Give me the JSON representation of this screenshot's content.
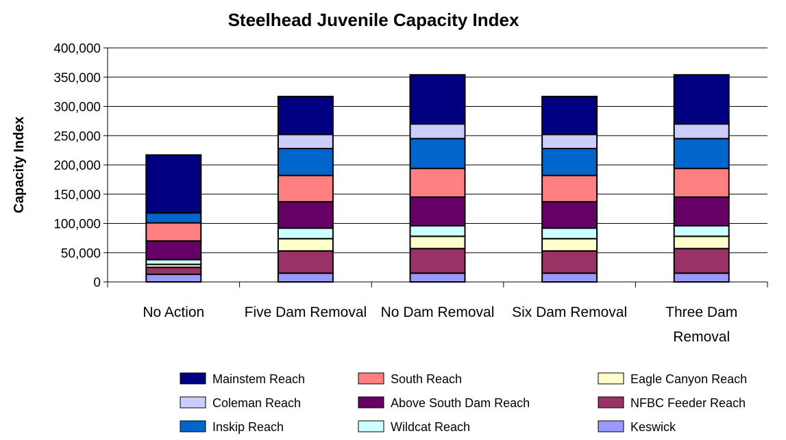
{
  "chart_data": {
    "type": "bar",
    "stacked": true,
    "title": "Steelhead Juvenile Capacity Index",
    "ylabel": "Capacity Index",
    "xlabel": "",
    "ylim": [
      0,
      400000
    ],
    "yticks": [
      0,
      50000,
      100000,
      150000,
      200000,
      250000,
      300000,
      350000,
      400000
    ],
    "ytick_labels": [
      "0",
      "50,000",
      "100,000",
      "150,000",
      "200,000",
      "250,000",
      "300,000",
      "350,000",
      "400,000"
    ],
    "grid": true,
    "legend_position": "bottom",
    "categories": [
      [
        "No Action"
      ],
      [
        "Five Dam Removal"
      ],
      [
        "No Dam Removal"
      ],
      [
        "Six Dam Removal"
      ],
      [
        "Three Dam",
        "Removal"
      ]
    ],
    "series": [
      {
        "name": "Keswick",
        "color": "#9999FF",
        "values": [
          13000,
          15000,
          15000,
          15000,
          15000
        ]
      },
      {
        "name": "NFBC Feeder Reach",
        "color": "#993366",
        "values": [
          12000,
          38000,
          42000,
          38000,
          42000
        ]
      },
      {
        "name": "Eagle Canyon Reach",
        "color": "#FFFFCC",
        "values": [
          5000,
          21000,
          21000,
          21000,
          21000
        ]
      },
      {
        "name": "Wildcat Reach",
        "color": "#CCFFFF",
        "values": [
          8000,
          18000,
          18000,
          18000,
          18000
        ]
      },
      {
        "name": "Above South Dam Reach",
        "color": "#660066",
        "values": [
          32000,
          45000,
          49000,
          45000,
          49000
        ]
      },
      {
        "name": "South Reach",
        "color": "#FF8080",
        "values": [
          31000,
          45000,
          49000,
          45000,
          49000
        ]
      },
      {
        "name": "Inskip Reach",
        "color": "#0066CC",
        "values": [
          17000,
          46000,
          51000,
          46000,
          51000
        ]
      },
      {
        "name": "Coleman Reach",
        "color": "#CCCCFF",
        "values": [
          0,
          24000,
          25000,
          24000,
          25000
        ]
      },
      {
        "name": "Mainstem Reach",
        "color": "#000080",
        "values": [
          99000,
          65000,
          84000,
          65000,
          84000
        ]
      }
    ],
    "legend_order": [
      "Mainstem Reach",
      "South Reach",
      "Eagle Canyon Reach",
      "Coleman Reach",
      "Above South Dam Reach",
      "NFBC Feeder Reach",
      "Inskip Reach",
      "Wildcat Reach",
      "Keswick"
    ]
  }
}
